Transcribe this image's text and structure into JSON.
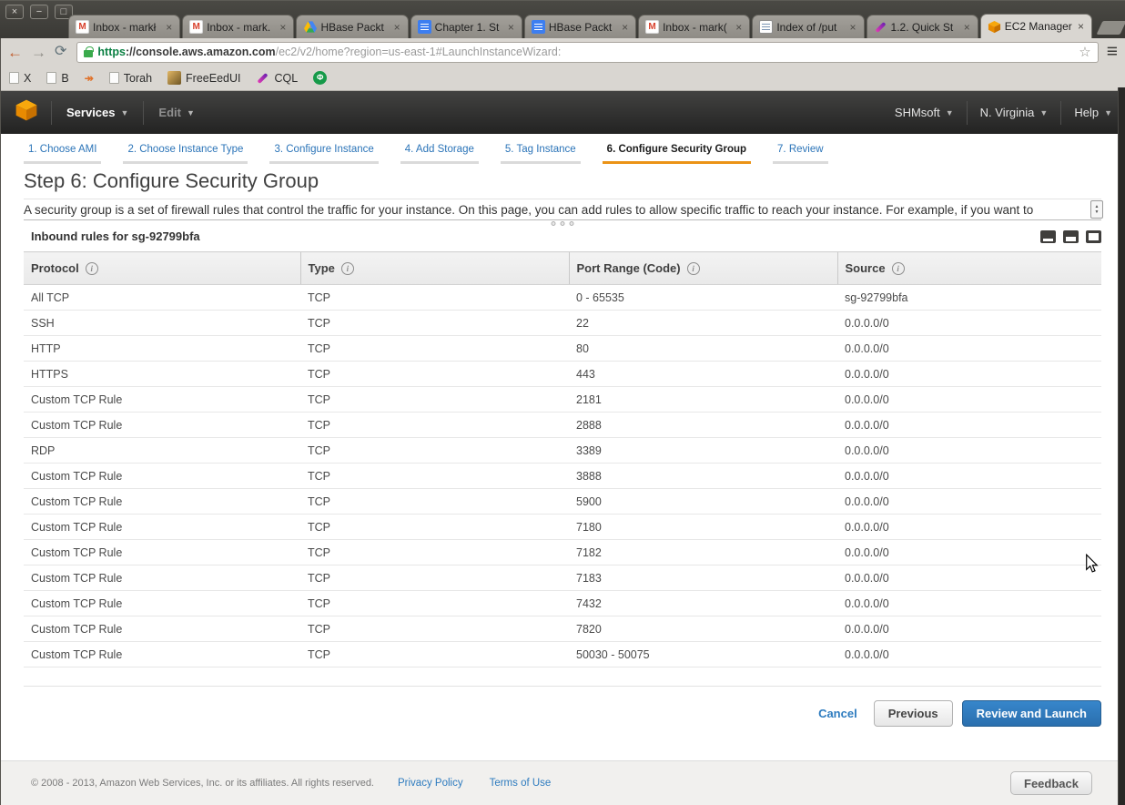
{
  "icons": {
    "close_win": "×",
    "minimize_win": "−",
    "maximize_win": "□",
    "back": "←",
    "forward": "→",
    "reload": "⟳",
    "star": "☆",
    "menu": "≡",
    "caret": "▼",
    "tab_close": "×",
    "info": "i",
    "spinner_up": "▲",
    "spinner_down": "▼"
  },
  "browser": {
    "window_controls": [
      {
        "name": "close",
        "glyph": "×"
      },
      {
        "name": "minimize",
        "glyph": "−"
      },
      {
        "name": "maximize",
        "glyph": "□"
      }
    ],
    "tabs": [
      {
        "title": "Inbox - markł",
        "icon": "gmail",
        "active": false
      },
      {
        "title": "Inbox - mark.",
        "icon": "gmail",
        "active": false
      },
      {
        "title": "HBase Packt",
        "icon": "gdrive",
        "active": false
      },
      {
        "title": "Chapter 1. St",
        "icon": "doc",
        "active": false
      },
      {
        "title": "HBase Packt",
        "icon": "doc",
        "active": false
      },
      {
        "title": "Inbox - mark(",
        "icon": "gmail",
        "active": false
      },
      {
        "title": "Index of /put",
        "icon": "index",
        "active": false
      },
      {
        "title": "1.2. Quick St",
        "icon": "pen",
        "active": false
      },
      {
        "title": "EC2 Manager",
        "icon": "aws",
        "active": true
      }
    ],
    "url": {
      "scheme": "https",
      "host": "://console.aws.amazon.com",
      "path": "/ec2/v2/home?region=us-east-1#LaunchInstanceWizard:"
    },
    "bookmarks": [
      {
        "label": "X",
        "icon": "page"
      },
      {
        "label": "B",
        "icon": "page"
      },
      {
        "label": "",
        "icon": "arrows"
      },
      {
        "label": "Torah",
        "icon": "page"
      },
      {
        "label": "FreeEedUI",
        "icon": "gold"
      },
      {
        "label": "CQL",
        "icon": "pen"
      },
      {
        "label": "",
        "icon": "green"
      }
    ]
  },
  "aws_nav": {
    "services": "Services",
    "edit": "Edit",
    "account": "SHMsoft",
    "region": "N. Virginia",
    "help": "Help"
  },
  "wizard": {
    "steps": [
      "1. Choose AMI",
      "2. Choose Instance Type",
      "3. Configure Instance",
      "4. Add Storage",
      "5. Tag Instance",
      "6. Configure Security Group",
      "7. Review"
    ],
    "active_index": 5
  },
  "page": {
    "title": "Step 6: Configure Security Group",
    "description": "A security group is a set of firewall rules that control the traffic for your instance. On this page, you can add rules to allow specific traffic to reach your instance. For example, if you want to",
    "section_title": "Inbound rules for sg-92799bfa"
  },
  "table": {
    "columns": [
      "Protocol",
      "Type",
      "Port Range (Code)",
      "Source"
    ],
    "rows": [
      {
        "protocol": "All TCP",
        "type": "TCP",
        "port": "0 - 65535",
        "source": "sg-92799bfa"
      },
      {
        "protocol": "SSH",
        "type": "TCP",
        "port": "22",
        "source": "0.0.0.0/0"
      },
      {
        "protocol": "HTTP",
        "type": "TCP",
        "port": "80",
        "source": "0.0.0.0/0"
      },
      {
        "protocol": "HTTPS",
        "type": "TCP",
        "port": "443",
        "source": "0.0.0.0/0"
      },
      {
        "protocol": "Custom TCP Rule",
        "type": "TCP",
        "port": "2181",
        "source": "0.0.0.0/0"
      },
      {
        "protocol": "Custom TCP Rule",
        "type": "TCP",
        "port": "2888",
        "source": "0.0.0.0/0"
      },
      {
        "protocol": "RDP",
        "type": "TCP",
        "port": "3389",
        "source": "0.0.0.0/0"
      },
      {
        "protocol": "Custom TCP Rule",
        "type": "TCP",
        "port": "3888",
        "source": "0.0.0.0/0"
      },
      {
        "protocol": "Custom TCP Rule",
        "type": "TCP",
        "port": "5900",
        "source": "0.0.0.0/0"
      },
      {
        "protocol": "Custom TCP Rule",
        "type": "TCP",
        "port": "7180",
        "source": "0.0.0.0/0"
      },
      {
        "protocol": "Custom TCP Rule",
        "type": "TCP",
        "port": "7182",
        "source": "0.0.0.0/0"
      },
      {
        "protocol": "Custom TCP Rule",
        "type": "TCP",
        "port": "7183",
        "source": "0.0.0.0/0"
      },
      {
        "protocol": "Custom TCP Rule",
        "type": "TCP",
        "port": "7432",
        "source": "0.0.0.0/0"
      },
      {
        "protocol": "Custom TCP Rule",
        "type": "TCP",
        "port": "7820",
        "source": "0.0.0.0/0"
      },
      {
        "protocol": "Custom TCP Rule",
        "type": "TCP",
        "port": "50030 - 50075",
        "source": "0.0.0.0/0"
      }
    ]
  },
  "actions": {
    "cancel": "Cancel",
    "previous": "Previous",
    "review": "Review and Launch"
  },
  "footer": {
    "copyright": "© 2008 - 2013, Amazon Web Services, Inc. or its affiliates. All rights reserved.",
    "privacy": "Privacy Policy",
    "terms": "Terms of Use",
    "feedback": "Feedback"
  },
  "colors": {
    "aws_orange": "#eb9316",
    "link_blue": "#2d7bbf",
    "navbar_dark": "#2a2a29",
    "secure_green": "#0b8043"
  }
}
